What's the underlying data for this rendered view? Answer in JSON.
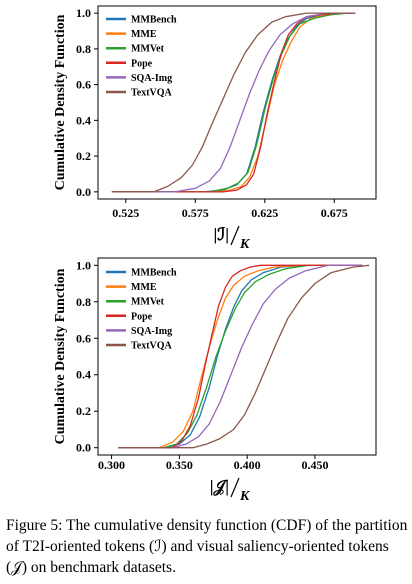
{
  "caption": "Figure 5: The cumulative density function (CDF) of the partition of T2I-oriented tokens (ℐ) and visual saliency-oriented tokens (𝒥) on benchmark datasets.",
  "chart_data": [
    {
      "type": "line",
      "title": "",
      "xlabel": "|ℐ|/K",
      "xlabel_symbol": "|ℐ|",
      "xlabel_denominator": "K",
      "ylabel": "Cumulative Density Function",
      "xlim": [
        0.505,
        0.705
      ],
      "ylim": [
        -0.04,
        1.04
      ],
      "xticks": [
        "0.525",
        "0.575",
        "0.625",
        "0.675"
      ],
      "yticks": [
        "0.0",
        "0.2",
        "0.4",
        "0.6",
        "0.8",
        "1.0"
      ],
      "grid": false,
      "legend_position": "top-left",
      "series": [
        {
          "name": "MMBench",
          "color": "#1f77b4",
          "x": [
            0.515,
            0.58,
            0.595,
            0.605,
            0.612,
            0.618,
            0.624,
            0.63,
            0.636,
            0.642,
            0.648,
            0.655,
            0.665,
            0.68,
            0.69
          ],
          "y": [
            0.0,
            0.0,
            0.01,
            0.04,
            0.1,
            0.25,
            0.45,
            0.62,
            0.76,
            0.86,
            0.93,
            0.97,
            0.99,
            1.0,
            1.0
          ]
        },
        {
          "name": "MME",
          "color": "#ff7f0e",
          "x": [
            0.515,
            0.59,
            0.6,
            0.608,
            0.614,
            0.62,
            0.626,
            0.632,
            0.638,
            0.644,
            0.65,
            0.658,
            0.668,
            0.682,
            0.69
          ],
          "y": [
            0.0,
            0.0,
            0.01,
            0.03,
            0.08,
            0.2,
            0.4,
            0.6,
            0.74,
            0.84,
            0.92,
            0.97,
            0.99,
            1.0,
            1.0
          ]
        },
        {
          "name": "MMVet",
          "color": "#2ca02c",
          "x": [
            0.515,
            0.585,
            0.598,
            0.606,
            0.613,
            0.619,
            0.625,
            0.631,
            0.637,
            0.643,
            0.65,
            0.66,
            0.672,
            0.685,
            0.69
          ],
          "y": [
            0.0,
            0.0,
            0.02,
            0.05,
            0.11,
            0.26,
            0.46,
            0.63,
            0.77,
            0.87,
            0.94,
            0.97,
            0.99,
            1.0,
            1.0
          ]
        },
        {
          "name": "Pope",
          "color": "#d62728",
          "x": [
            0.515,
            0.595,
            0.605,
            0.612,
            0.617,
            0.622,
            0.627,
            0.632,
            0.637,
            0.642,
            0.648,
            0.655,
            0.665,
            0.678,
            0.69
          ],
          "y": [
            0.0,
            0.0,
            0.01,
            0.04,
            0.1,
            0.25,
            0.45,
            0.62,
            0.78,
            0.88,
            0.94,
            0.98,
            0.99,
            1.0,
            1.0
          ]
        },
        {
          "name": "SQA-Img",
          "color": "#9467bd",
          "x": [
            0.515,
            0.56,
            0.575,
            0.585,
            0.593,
            0.6,
            0.607,
            0.614,
            0.621,
            0.628,
            0.636,
            0.645,
            0.655,
            0.67,
            0.69
          ],
          "y": [
            0.0,
            0.0,
            0.02,
            0.06,
            0.13,
            0.25,
            0.4,
            0.55,
            0.68,
            0.79,
            0.88,
            0.94,
            0.98,
            1.0,
            1.0
          ]
        },
        {
          "name": "TextVQA",
          "color": "#8c564b",
          "x": [
            0.515,
            0.545,
            0.555,
            0.565,
            0.573,
            0.58,
            0.587,
            0.595,
            0.603,
            0.611,
            0.62,
            0.63,
            0.64,
            0.655,
            0.69
          ],
          "y": [
            0.0,
            0.0,
            0.03,
            0.08,
            0.15,
            0.25,
            0.38,
            0.52,
            0.66,
            0.78,
            0.88,
            0.95,
            0.98,
            1.0,
            1.0
          ]
        }
      ]
    },
    {
      "type": "line",
      "title": "",
      "xlabel": "|𝒥|/K",
      "xlabel_symbol": "|𝒥|",
      "xlabel_denominator": "K",
      "ylabel": "Cumulative Density Function",
      "xlim": [
        0.29,
        0.495
      ],
      "ylim": [
        -0.04,
        1.04
      ],
      "xticks": [
        "0.300",
        "0.350",
        "0.400",
        "0.450"
      ],
      "yticks": [
        "0.0",
        "0.2",
        "0.4",
        "0.6",
        "0.8",
        "1.0"
      ],
      "grid": false,
      "legend_position": "top-left",
      "series": [
        {
          "name": "MMBench",
          "color": "#1f77b4",
          "x": [
            0.305,
            0.34,
            0.35,
            0.358,
            0.365,
            0.372,
            0.378,
            0.384,
            0.39,
            0.396,
            0.403,
            0.412,
            0.425,
            0.445,
            0.485
          ],
          "y": [
            0.0,
            0.0,
            0.02,
            0.07,
            0.17,
            0.33,
            0.5,
            0.65,
            0.77,
            0.86,
            0.92,
            0.96,
            0.99,
            1.0,
            1.0
          ]
        },
        {
          "name": "MME",
          "color": "#ff7f0e",
          "x": [
            0.305,
            0.335,
            0.345,
            0.353,
            0.36,
            0.366,
            0.372,
            0.378,
            0.384,
            0.39,
            0.398,
            0.408,
            0.42,
            0.44,
            0.485
          ],
          "y": [
            0.0,
            0.0,
            0.03,
            0.09,
            0.2,
            0.38,
            0.55,
            0.7,
            0.82,
            0.89,
            0.94,
            0.97,
            0.99,
            1.0,
            1.0
          ]
        },
        {
          "name": "MMVet",
          "color": "#2ca02c",
          "x": [
            0.305,
            0.338,
            0.348,
            0.356,
            0.363,
            0.37,
            0.377,
            0.384,
            0.391,
            0.398,
            0.406,
            0.416,
            0.428,
            0.445,
            0.485
          ],
          "y": [
            0.0,
            0.0,
            0.02,
            0.08,
            0.18,
            0.33,
            0.5,
            0.64,
            0.76,
            0.85,
            0.91,
            0.95,
            0.98,
            1.0,
            1.0
          ]
        },
        {
          "name": "Pope",
          "color": "#d62728",
          "x": [
            0.305,
            0.345,
            0.352,
            0.358,
            0.364,
            0.369,
            0.374,
            0.379,
            0.384,
            0.389,
            0.395,
            0.402,
            0.41,
            0.425,
            0.485
          ],
          "y": [
            0.0,
            0.0,
            0.04,
            0.12,
            0.27,
            0.45,
            0.62,
            0.78,
            0.88,
            0.94,
            0.97,
            0.99,
            1.0,
            1.0,
            1.0
          ]
        },
        {
          "name": "SQA-Img",
          "color": "#9467bd",
          "x": [
            0.305,
            0.345,
            0.355,
            0.364,
            0.372,
            0.38,
            0.388,
            0.396,
            0.404,
            0.412,
            0.421,
            0.431,
            0.443,
            0.46,
            0.485
          ],
          "y": [
            0.0,
            0.0,
            0.02,
            0.06,
            0.13,
            0.25,
            0.4,
            0.55,
            0.68,
            0.79,
            0.87,
            0.93,
            0.97,
            1.0,
            1.0
          ]
        },
        {
          "name": "TextVQA",
          "color": "#8c564b",
          "x": [
            0.305,
            0.36,
            0.37,
            0.38,
            0.39,
            0.398,
            0.406,
            0.414,
            0.422,
            0.43,
            0.44,
            0.45,
            0.462,
            0.478,
            0.49
          ],
          "y": [
            0.0,
            0.0,
            0.02,
            0.05,
            0.1,
            0.18,
            0.3,
            0.44,
            0.58,
            0.71,
            0.82,
            0.9,
            0.96,
            0.99,
            1.0
          ]
        }
      ]
    }
  ]
}
